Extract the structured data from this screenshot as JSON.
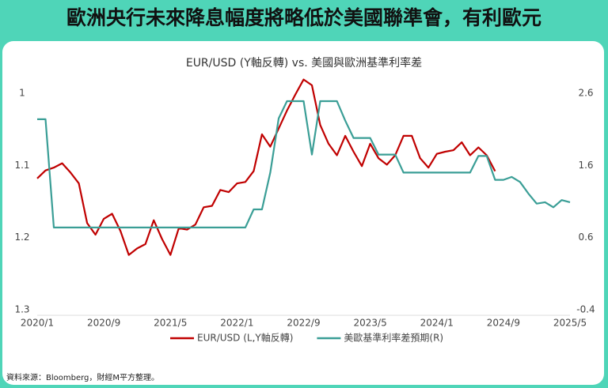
{
  "header": {
    "title": "歐洲央行未來降息幅度將略低於美國聯準會，有利歐元"
  },
  "footnote": "資料來源：Bloomberg，財經M平方整理。",
  "chart_data": {
    "type": "line",
    "title": "EUR/USD (Y軸反轉) vs. 美國與歐洲基準利率差",
    "x": [
      "2020/1",
      "2020/2",
      "2020/3",
      "2020/4",
      "2020/5",
      "2020/6",
      "2020/7",
      "2020/8",
      "2020/9",
      "2020/10",
      "2020/11",
      "2020/12",
      "2021/1",
      "2021/2",
      "2021/3",
      "2021/4",
      "2021/5",
      "2021/6",
      "2021/7",
      "2021/8",
      "2021/9",
      "2021/10",
      "2021/11",
      "2021/12",
      "2022/1",
      "2022/2",
      "2022/3",
      "2022/4",
      "2022/5",
      "2022/6",
      "2022/7",
      "2022/8",
      "2022/9",
      "2022/10",
      "2022/11",
      "2022/12",
      "2023/1",
      "2023/2",
      "2023/3",
      "2023/4",
      "2023/5",
      "2023/6",
      "2023/7",
      "2023/8",
      "2023/9",
      "2023/10",
      "2023/11",
      "2023/12",
      "2024/1",
      "2024/2",
      "2024/3",
      "2024/4",
      "2024/5",
      "2024/6",
      "2024/7",
      "2024/8",
      "2024/9",
      "2024/10",
      "2024/11",
      "2024/12",
      "2025/1",
      "2025/2",
      "2025/3",
      "2025/4",
      "2025/5"
    ],
    "xticks": [
      "2020/1",
      "2020/9",
      "2021/5",
      "2022/1",
      "2022/9",
      "2023/5",
      "2024/1",
      "2024/9",
      "2025/5"
    ],
    "ylim": [
      1.3,
      0.98
    ],
    "yticks": [
      1,
      1.1,
      1.2,
      1.3
    ],
    "y2lim": [
      -0.4,
      2.8
    ],
    "y2ticks": [
      2.6,
      1.6,
      0.6,
      -0.4
    ],
    "series": [
      {
        "name": "EUR/USD (L,Y軸反轉)",
        "color": "#c00000",
        "values": [
          1.118,
          1.107,
          1.103,
          1.097,
          1.11,
          1.125,
          1.18,
          1.196,
          1.174,
          1.167,
          1.191,
          1.224,
          1.215,
          1.209,
          1.176,
          1.202,
          1.224,
          1.187,
          1.189,
          1.182,
          1.158,
          1.156,
          1.134,
          1.137,
          1.125,
          1.123,
          1.108,
          1.057,
          1.074,
          1.049,
          1.024,
          1.002,
          0.981,
          0.989,
          1.044,
          1.07,
          1.086,
          1.059,
          1.081,
          1.101,
          1.07,
          1.09,
          1.099,
          1.086,
          1.059,
          1.059,
          1.09,
          1.103,
          1.084,
          1.081,
          1.079,
          1.068,
          1.086,
          1.075,
          1.086,
          1.108,
          null,
          null,
          null,
          null,
          null,
          null,
          null,
          null,
          null
        ]
      },
      {
        "name": "美歐基準利率差預期(R)",
        "color": "#3a9e96",
        "axis": "y2",
        "values": [
          2.24,
          2.24,
          0.74,
          0.74,
          0.74,
          0.74,
          0.74,
          0.74,
          0.74,
          0.74,
          0.74,
          0.74,
          0.74,
          0.74,
          0.74,
          0.74,
          0.74,
          0.74,
          0.74,
          0.74,
          0.74,
          0.74,
          0.74,
          0.74,
          0.74,
          0.74,
          0.99,
          0.99,
          1.5,
          2.25,
          2.49,
          2.49,
          2.49,
          1.75,
          2.49,
          2.49,
          2.49,
          2.22,
          1.98,
          1.98,
          1.98,
          1.75,
          1.75,
          1.75,
          1.5,
          1.5,
          1.5,
          1.5,
          1.5,
          1.5,
          1.5,
          1.5,
          1.5,
          1.73,
          1.73,
          1.4,
          1.4,
          1.44,
          1.37,
          1.21,
          1.07,
          1.09,
          1.02,
          1.12,
          1.09
        ]
      }
    ]
  }
}
